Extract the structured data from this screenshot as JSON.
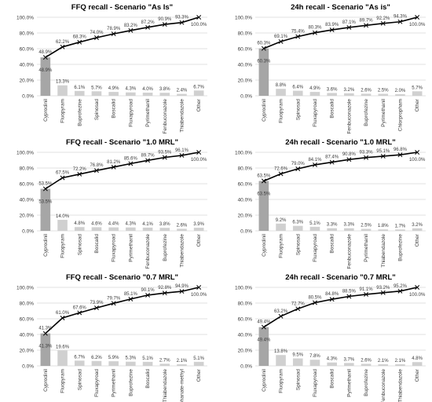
{
  "chart_data": [
    {
      "type": "bar",
      "title": "FFQ recall - Scenario \"As Is\"",
      "categories": [
        "Cyprodinil",
        "Fluopyram",
        "Buprofezine",
        "Spinosad",
        "Boscalid",
        "Fluxapyroad",
        "Pyrimethanil",
        "Fenbuconazole",
        "Thiabendazole",
        "Other"
      ],
      "series": [
        {
          "type": "bar",
          "values": [
            48.9,
            13.3,
            6.1,
            5.7,
            4.9,
            4.3,
            4.0,
            3.8,
            2.4,
            6.7
          ],
          "labels": [
            "48.9%",
            "13.3%",
            "6.1%",
            "5.7%",
            "4.9%",
            "4.3%",
            "4.0%",
            "3.8%",
            "2.4%",
            "6.7%"
          ]
        },
        {
          "type": "line",
          "values": [
            48.9,
            62.2,
            68.3,
            74.0,
            78.9,
            83.2,
            87.2,
            90.9,
            93.3,
            100.0
          ],
          "labels": [
            "48.9%",
            "62.2%",
            "68.3%",
            "74.0%",
            "78.9%",
            "83.2%",
            "87.2%",
            "90.9%",
            "93.3%",
            "100.0%"
          ]
        }
      ],
      "yticks": [
        "0.0%",
        "20.0%",
        "40.0%",
        "60.0%",
        "80.0%",
        "100.0%"
      ],
      "ylim": [
        0,
        100
      ]
    },
    {
      "type": "bar",
      "title": "24h recall - Scenario \"As is\"",
      "categories": [
        "Cyprodinil",
        "Fluopyram",
        "Spinosad",
        "Fluxapyroad",
        "Boscalid",
        "Fenbuconazole",
        "Buprofezine",
        "Pyrimethanil",
        "Chlorpropham",
        "Other"
      ],
      "series": [
        {
          "type": "bar",
          "values": [
            60.3,
            8.8,
            6.4,
            4.9,
            3.6,
            3.2,
            2.6,
            2.5,
            2.0,
            5.7
          ],
          "labels": [
            "60.3%",
            "8.8%",
            "6.4%",
            "4.9%",
            "3.6%",
            "3.2%",
            "2.6%",
            "2.5%",
            "2.0%",
            "5.7%"
          ]
        },
        {
          "type": "line",
          "values": [
            60.3,
            69.1,
            75.4,
            80.3,
            83.9,
            87.1,
            89.7,
            92.2,
            94.3,
            100.0
          ],
          "labels": [
            "60.3%",
            "69.1%",
            "75.4%",
            "80.3%",
            "83.9%",
            "87.1%",
            "89.7%",
            "92.2%",
            "94.3%",
            "100.0%"
          ]
        }
      ],
      "yticks": [
        "0.0%",
        "20.0%",
        "40.0%",
        "60.0%",
        "80.0%",
        "100.0%"
      ],
      "ylim": [
        0,
        100
      ]
    },
    {
      "type": "bar",
      "title": "FFQ recall - Scenario \"1.0 MRL\"",
      "categories": [
        "Cyprodinil",
        "Fluopyram",
        "Spinosad",
        "Boscalid",
        "Fluxapyroad",
        "Pyrimethanil",
        "Fenbuconazole",
        "Buprofezine",
        "Thiabendazole",
        "Other"
      ],
      "series": [
        {
          "type": "bar",
          "values": [
            53.5,
            14.0,
            4.8,
            4.6,
            4.4,
            4.3,
            4.1,
            3.8,
            2.6,
            3.9
          ],
          "labels": [
            "53.5%",
            "14.0%",
            "4.8%",
            "4.6%",
            "4.4%",
            "4.3%",
            "4.1%",
            "3.8%",
            "2.6%",
            "3.9%"
          ]
        },
        {
          "type": "line",
          "values": [
            53.5,
            67.5,
            72.2,
            76.8,
            81.2,
            85.6,
            89.7,
            93.5,
            96.1,
            100.0
          ],
          "labels": [
            "53.5%",
            "67.5%",
            "72.2%",
            "76.8%",
            "81.2%",
            "85.6%",
            "89.7%",
            "93.5%",
            "96.1%",
            "100.0%"
          ]
        }
      ],
      "yticks": [
        "0.0%",
        "20.0%",
        "40.0%",
        "60.0%",
        "80.0%",
        "100.0%"
      ],
      "ylim": [
        0,
        100
      ]
    },
    {
      "type": "bar",
      "title": "24h recall - Scenario \"1.0 MRL\"",
      "categories": [
        "Cyprodinil",
        "Fluopyram",
        "Spinosad",
        "Fluxapyroad",
        "Boscalid",
        "Fenbuconazole",
        "Pyrimethanil",
        "Thiabendazole",
        "Buprofezine",
        "Other"
      ],
      "series": [
        {
          "type": "bar",
          "values": [
            63.5,
            9.2,
            6.3,
            5.1,
            3.3,
            3.3,
            2.5,
            1.8,
            1.7,
            3.2
          ],
          "labels": [
            "63.5%",
            "9.2%",
            "6.3%",
            "5.1%",
            "3.3%",
            "3.3%",
            "2.5%",
            "1.8%",
            "1.7%",
            "3.2%"
          ]
        },
        {
          "type": "line",
          "values": [
            63.5,
            72.6,
            79.0,
            84.1,
            87.4,
            90.8,
            93.3,
            95.1,
            96.8,
            100.0
          ],
          "labels": [
            "63.5%",
            "72.6%",
            "79.0%",
            "84.1%",
            "87.4%",
            "90.8%",
            "93.3%",
            "95.1%",
            "96.8%",
            "100.0%"
          ]
        }
      ],
      "yticks": [
        "0.0%",
        "20.0%",
        "40.0%",
        "60.0%",
        "80.0%",
        "100.0%"
      ],
      "ylim": [
        0,
        100
      ]
    },
    {
      "type": "bar",
      "title": "FFQ recall - Scenario \"0.7 MRL\"",
      "categories": [
        "Cyprodinil",
        "Fluopyram",
        "Spinosad",
        "Fluxapyroad",
        "Pyrimethanil",
        "Buprofezine",
        "Boscalid",
        "Thiabendazole",
        "Thiophanate-methyl",
        "Other"
      ],
      "series": [
        {
          "type": "bar",
          "values": [
            41.3,
            19.6,
            6.7,
            6.2,
            5.9,
            5.3,
            5.1,
            2.7,
            2.1,
            5.1
          ],
          "labels": [
            "41.3%",
            "19.6%",
            "6.7%",
            "6.2%",
            "5.9%",
            "5.3%",
            "5.1%",
            "2.7%",
            "2.1%",
            "5.1%"
          ]
        },
        {
          "type": "line",
          "values": [
            41.3,
            61.0,
            67.6,
            73.9,
            79.7,
            85.1,
            90.1,
            92.8,
            94.9,
            100.0
          ],
          "labels": [
            "41.3%",
            "61.0%",
            "67.6%",
            "73.9%",
            "79.7%",
            "85.1%",
            "90.1%",
            "92.8%",
            "94.9%",
            "100.0%"
          ]
        }
      ],
      "yticks": [
        "0.0%",
        "20.0%",
        "40.0%",
        "60.0%",
        "80.0%",
        "100.0%"
      ],
      "ylim": [
        0,
        100
      ]
    },
    {
      "type": "bar",
      "title": "24h recall - Scenario \"0.7 MRL\"",
      "categories": [
        "Cyprodinil",
        "Fluopyram",
        "Spinosad",
        "Fluxapyroad",
        "Boscalid",
        "Pyrimethanil",
        "Buprofezine",
        "Fenbuconazole",
        "Thiabendazole",
        "Other"
      ],
      "series": [
        {
          "type": "bar",
          "values": [
            49.4,
            13.8,
            9.5,
            7.8,
            4.3,
            3.7,
            2.6,
            2.1,
            2.1,
            4.8
          ],
          "labels": [
            "49.4%",
            "13.8%",
            "9.5%",
            "7.8%",
            "4.3%",
            "3.7%",
            "2.6%",
            "2.1%",
            "2.1%",
            "4.8%"
          ]
        },
        {
          "type": "line",
          "values": [
            49.4,
            63.2,
            72.7,
            80.5,
            84.8,
            88.5,
            91.1,
            93.2,
            95.2,
            100.0
          ],
          "labels": [
            "49.4%",
            "63.2%",
            "72.7%",
            "80.5%",
            "84.8%",
            "88.5%",
            "91.1%",
            "93.2%",
            "95.2%",
            "100.0%"
          ]
        }
      ],
      "yticks": [
        "0.0%",
        "20.0%",
        "40.0%",
        "60.0%",
        "80.0%",
        "100.0%"
      ],
      "ylim": [
        0,
        100
      ]
    }
  ],
  "colors": {
    "first_bar": "#a6a6a6",
    "bar": "#d0d0d0",
    "line": "#000000",
    "gridline": "#d9d9d9",
    "text": "#3a3a3a",
    "title": "#000000"
  }
}
